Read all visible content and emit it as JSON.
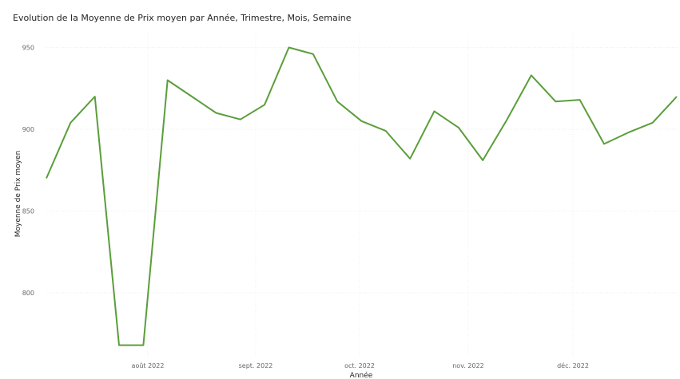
{
  "chart_data": {
    "type": "line",
    "title": "Evolution de la Moyenne de Prix moyen par Année, Trimestre, Mois, Semaine",
    "xlabel": "Année",
    "ylabel": "Moyenne de Prix moyen",
    "ylim": [
      767,
      955
    ],
    "y_ticks": [
      800,
      850,
      900,
      950
    ],
    "x_tick_labels": [
      "août 2022",
      "sept. 2022",
      "oct. 2022",
      "nov. 2022",
      "déc. 2022"
    ],
    "grid": true,
    "line_color": "#5A9E3A",
    "series": [
      {
        "values": [
          870,
          904,
          920,
          768,
          768,
          930,
          920,
          910,
          906,
          915,
          950,
          946,
          917,
          905,
          899,
          882,
          911,
          901,
          881,
          906,
          933,
          917,
          918,
          891,
          898,
          904,
          920
        ]
      }
    ]
  }
}
